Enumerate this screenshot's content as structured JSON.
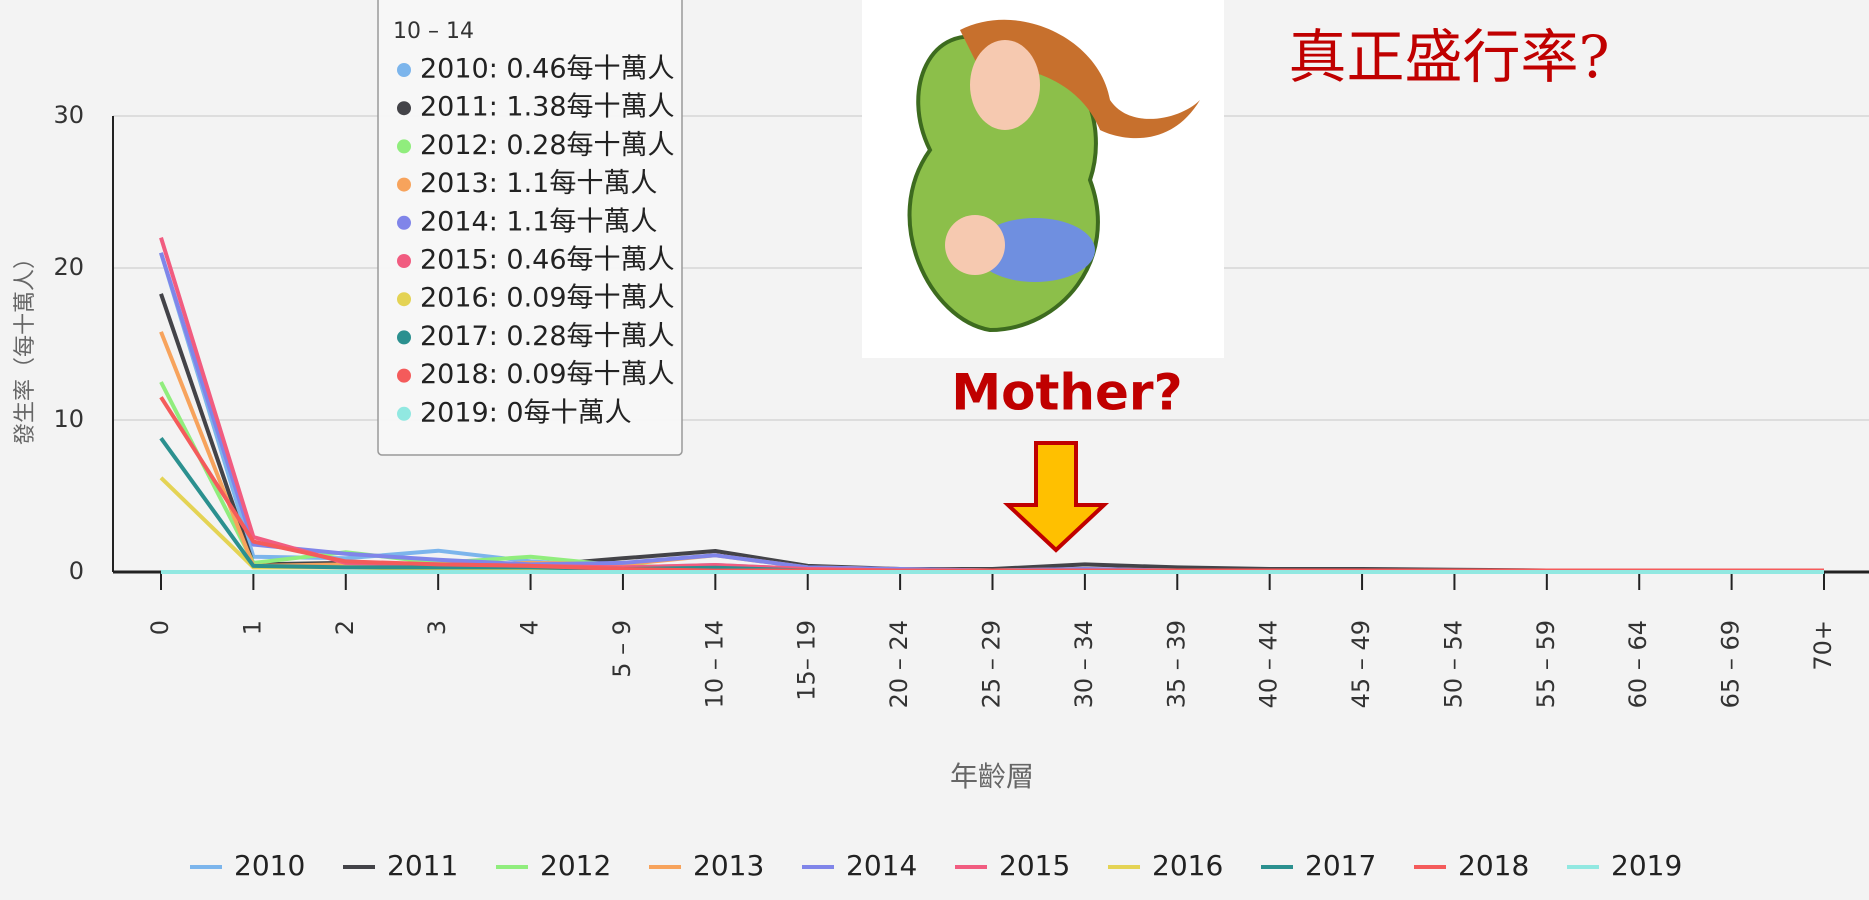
{
  "chart_data": {
    "type": "line",
    "y_axis_label": "發生率（每十萬人）",
    "x_axis_label": "年齡層",
    "categories": [
      "0",
      "1",
      "2",
      "3",
      "4",
      "5 – 9",
      "10 – 14",
      "15– 19",
      "20 – 24",
      "25 – 29",
      "30 – 34",
      "35 – 39",
      "40 – 44",
      "45 – 49",
      "50 – 54",
      "55 – 59",
      "60 – 64",
      "65 – 69",
      "70+"
    ],
    "ylim": [
      0,
      30
    ],
    "yticks": [
      0,
      10,
      20,
      30
    ],
    "grid": true,
    "series": [
      {
        "name": "2010",
        "color": "#7cb5ec",
        "values": [
          21,
          1.0,
          0.9,
          1.4,
          0.7,
          0.3,
          0.46,
          0.2,
          0.1,
          0.1,
          0.15,
          0.1,
          0.15,
          0.15,
          0.1,
          0.1,
          0.1,
          0.1,
          0.1
        ]
      },
      {
        "name": "2011",
        "color": "#434348",
        "values": [
          18.3,
          0.5,
          0.6,
          0.3,
          0.4,
          0.9,
          1.38,
          0.4,
          0.2,
          0.2,
          0.5,
          0.3,
          0.2,
          0.2,
          0.15,
          0.1,
          0.1,
          0.1,
          0.1
        ]
      },
      {
        "name": "2012",
        "color": "#90ed7d",
        "values": [
          12.5,
          0.6,
          1.3,
          0.6,
          1.0,
          0.4,
          0.28,
          0.2,
          0.1,
          0.1,
          0.1,
          0.1,
          0.1,
          0.1,
          0.1,
          0.1,
          0.1,
          0.1,
          0.1
        ]
      },
      {
        "name": "2013",
        "color": "#f7a35c",
        "values": [
          15.8,
          0.4,
          0.5,
          0.4,
          0.6,
          0.5,
          1.1,
          0.3,
          0.2,
          0.1,
          0.2,
          0.1,
          0.1,
          0.1,
          0.1,
          0.1,
          0.1,
          0.1,
          0.1
        ]
      },
      {
        "name": "2014",
        "color": "#8085e9",
        "values": [
          21,
          1.8,
          1.2,
          0.8,
          0.5,
          0.6,
          1.1,
          0.3,
          0.2,
          0.1,
          0.2,
          0.1,
          0.1,
          0.1,
          0.1,
          0.1,
          0.1,
          0.1,
          0.1
        ]
      },
      {
        "name": "2015",
        "color": "#f15c80",
        "values": [
          22,
          2.3,
          0.6,
          0.5,
          0.4,
          0.3,
          0.46,
          0.2,
          0.1,
          0.1,
          0.1,
          0.1,
          0.1,
          0.1,
          0.1,
          0.1,
          0.1,
          0.1,
          0.1
        ]
      },
      {
        "name": "2016",
        "color": "#e4d354",
        "values": [
          6.2,
          0.3,
          0.3,
          0.2,
          0.2,
          0.1,
          0.09,
          0.1,
          0.1,
          0.1,
          0.1,
          0.1,
          0.1,
          0.1,
          0.1,
          0.1,
          0.1,
          0.1,
          0.1
        ]
      },
      {
        "name": "2017",
        "color": "#2b908f",
        "values": [
          8.8,
          0.4,
          0.3,
          0.3,
          0.3,
          0.2,
          0.28,
          0.1,
          0.1,
          0.1,
          0.1,
          0.1,
          0.1,
          0.1,
          0.1,
          0.1,
          0.1,
          0.1,
          0.1
        ]
      },
      {
        "name": "2018",
        "color": "#f45b5b",
        "values": [
          11.5,
          2.0,
          0.7,
          0.5,
          0.4,
          0.2,
          0.09,
          0.1,
          0.1,
          0.1,
          0.1,
          0.1,
          0.1,
          0.1,
          0.1,
          0.1,
          0.1,
          0.1,
          0.1
        ]
      },
      {
        "name": "2019",
        "color": "#91e8e1",
        "values": [
          0,
          0,
          0,
          0,
          0,
          0,
          0,
          0,
          0,
          0,
          0,
          0,
          0,
          0,
          0,
          0,
          0,
          0,
          0
        ]
      }
    ],
    "tooltip": {
      "title": "10 – 14",
      "rows": [
        "2010: 0.46每十萬人",
        "2011: 1.38每十萬人",
        "2012: 0.28每十萬人",
        "2013: 1.1每十萬人",
        "2014: 1.1每十萬人",
        "2015: 0.46每十萬人",
        "2016: 0.09每十萬人",
        "2017: 0.28每十萬人",
        "2018: 0.09每十萬人",
        "2019: 0每十萬人"
      ]
    },
    "annotations": [
      "真正盛行率?",
      "Mother?"
    ]
  }
}
